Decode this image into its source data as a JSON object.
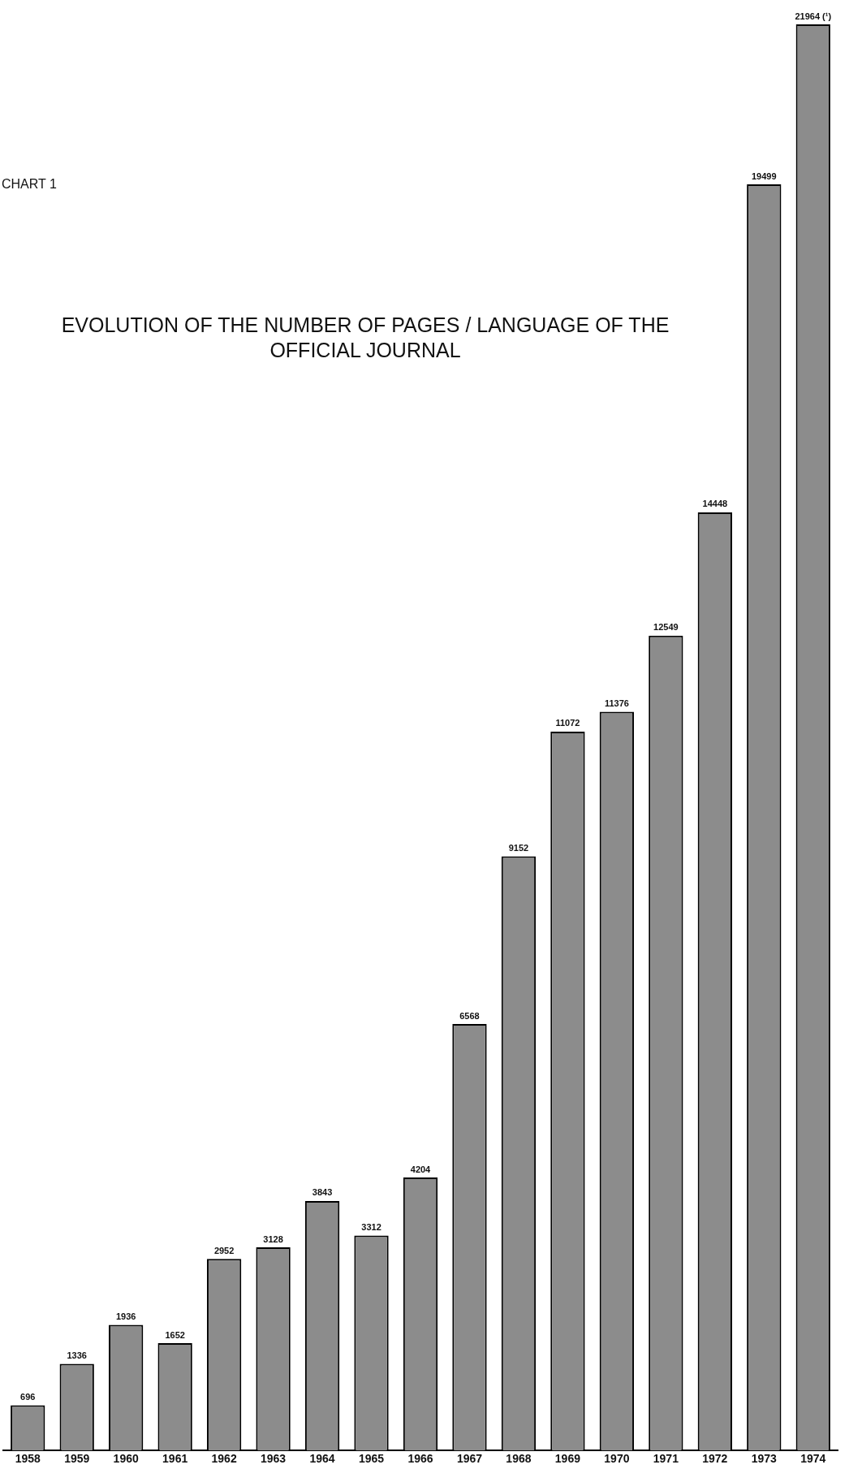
{
  "chart_data": {
    "type": "bar",
    "title": "EVOLUTION OF THE NUMBER OF PAGES / LANGUAGE OF THE OFFICIAL JOURNAL",
    "annotations": [
      "CHART 1"
    ],
    "categories": [
      "1958",
      "1959",
      "1960",
      "1961",
      "1962",
      "1963",
      "1964",
      "1965",
      "1966",
      "1967",
      "1968",
      "1969",
      "1970",
      "1971",
      "1972",
      "1973",
      "1974"
    ],
    "values": [
      696,
      1336,
      1936,
      1652,
      2952,
      3128,
      3843,
      3312,
      4204,
      6568,
      9152,
      11072,
      11376,
      12549,
      14448,
      19499,
      21964
    ],
    "value_labels": [
      "696",
      "1336",
      "1936",
      "1652",
      "2952",
      "3128",
      "3843",
      "3312",
      "4204",
      "6568",
      "9152",
      "11072",
      "11376",
      "12549",
      "14448",
      "19499",
      "21964 (¹)"
    ],
    "color": "#8c8c8c",
    "grid": false,
    "legend": false
  }
}
